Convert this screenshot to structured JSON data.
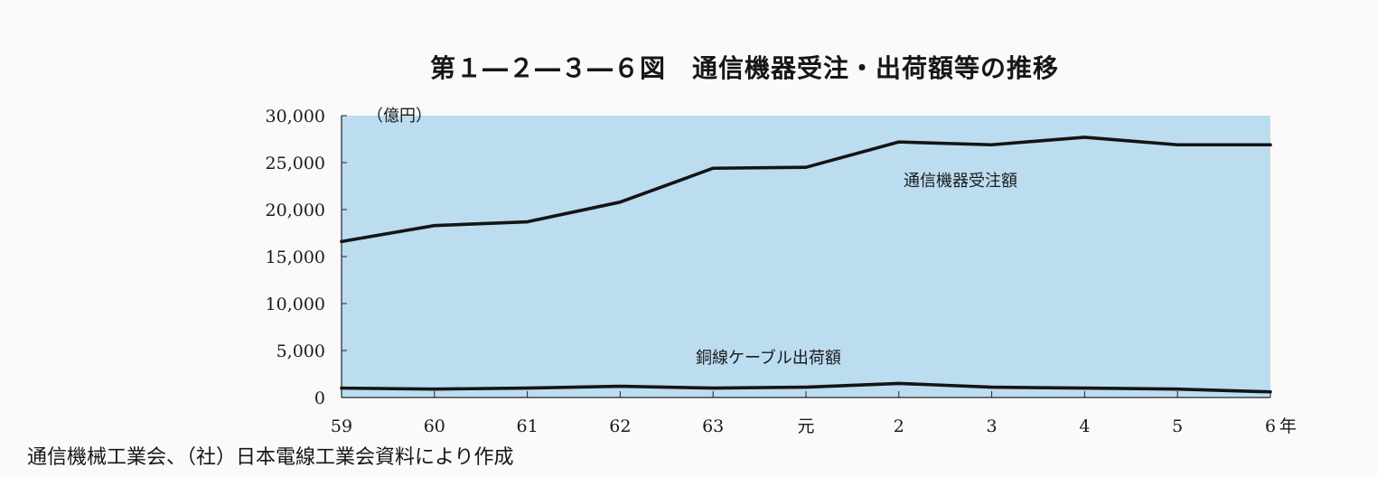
{
  "chart_data": {
    "type": "line",
    "title": "第１―２―３―６図　通信機器受注・出荷額等の推移",
    "ylabel": "（億円）",
    "xlabel": "",
    "x_unit_suffix": "年",
    "categories": [
      "59",
      "60",
      "61",
      "62",
      "63",
      "元",
      "2",
      "3",
      "4",
      "5",
      "6"
    ],
    "ylim": [
      0,
      30000
    ],
    "yticks": [
      "30,000",
      "25,000",
      "20,000",
      "15,000",
      "10,000",
      "5,000",
      "0"
    ],
    "ytick_values": [
      30000,
      25000,
      20000,
      15000,
      10000,
      5000,
      0
    ],
    "series": [
      {
        "name": "通信機器受注額",
        "values": [
          16600,
          18300,
          18700,
          20800,
          24400,
          24500,
          27200,
          26900,
          27700,
          26900,
          26900
        ]
      },
      {
        "name": "銅線ケーブル出荷額",
        "values": [
          1000,
          900,
          1000,
          1200,
          1000,
          1100,
          1500,
          1100,
          1000,
          900,
          600
        ]
      }
    ],
    "plot_background": "#bcdcf0",
    "line_color": "#141414",
    "grid": false
  },
  "source": "通信機械工業会、（社）日本電線工業会資料により作成"
}
